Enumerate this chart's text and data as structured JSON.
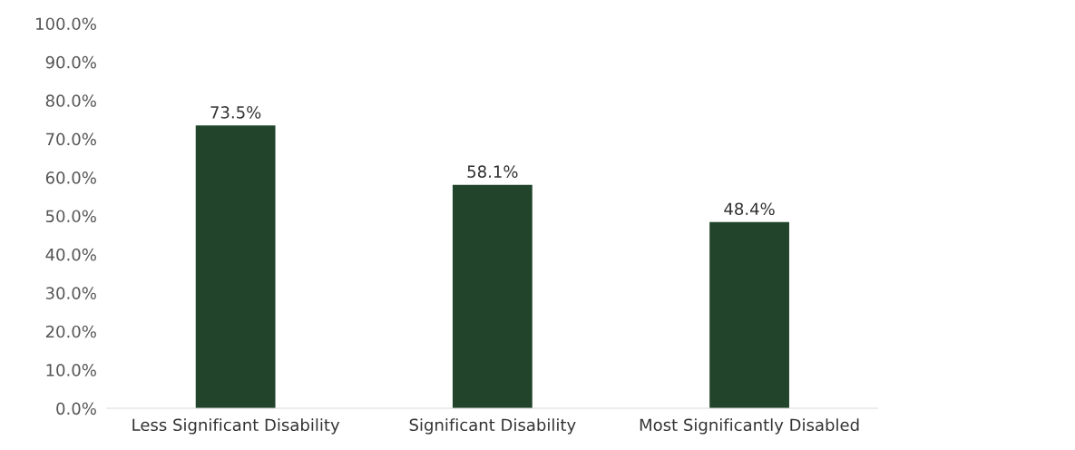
{
  "chart_data": {
    "type": "bar",
    "categories": [
      "Less Significant Disability",
      "Significant Disability",
      "Most Significantly Disabled"
    ],
    "values": [
      73.5,
      58.1,
      48.4
    ],
    "value_labels": [
      "73.5%",
      "58.1%",
      "48.4%"
    ],
    "color": "#21442b",
    "ylim": [
      0,
      100
    ],
    "yticks": [
      {
        "value": 0,
        "label": "0.0%"
      },
      {
        "value": 10,
        "label": "10.0%"
      },
      {
        "value": 20,
        "label": "20.0%"
      },
      {
        "value": 30,
        "label": "30.0%"
      },
      {
        "value": 40,
        "label": "40.0%"
      },
      {
        "value": 50,
        "label": "50.0%"
      },
      {
        "value": 60,
        "label": "60.0%"
      },
      {
        "value": 70,
        "label": "70.0%"
      },
      {
        "value": 80,
        "label": "80.0%"
      },
      {
        "value": 90,
        "label": "90.0%"
      },
      {
        "value": 100,
        "label": "100.0%"
      }
    ],
    "grid": false,
    "legend": false
  }
}
